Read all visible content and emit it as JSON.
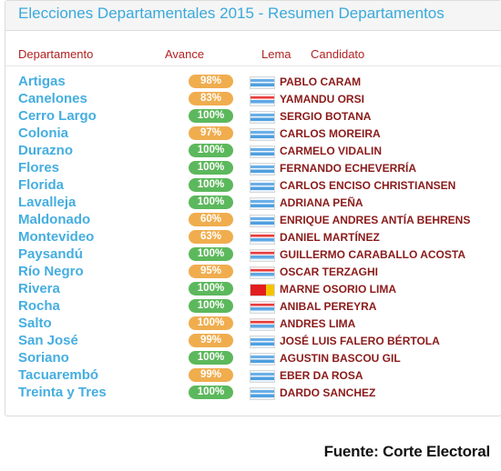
{
  "title": "Elecciones Departamentales 2015 - Resumen Departamentos",
  "columns": {
    "departamento": "Departamento",
    "avance": "Avance",
    "lema": "Lema",
    "candidato": "Candidato"
  },
  "rows": [
    {
      "departamento": "Artigas",
      "avance": "98%",
      "candidato": "PABLO CARAM",
      "flag": "blue",
      "status": "orange"
    },
    {
      "departamento": "Canelones",
      "avance": "83%",
      "candidato": "YAMANDU ORSI",
      "flag": "red",
      "status": "orange"
    },
    {
      "departamento": "Cerro Largo",
      "avance": "100%",
      "candidato": "SERGIO BOTANA",
      "flag": "blue",
      "status": "green"
    },
    {
      "departamento": "Colonia",
      "avance": "97%",
      "candidato": "CARLOS MOREIRA",
      "flag": "blue",
      "status": "orange"
    },
    {
      "departamento": "Durazno",
      "avance": "100%",
      "candidato": "CARMELO VIDALIN",
      "flag": "blue",
      "status": "green"
    },
    {
      "departamento": "Flores",
      "avance": "100%",
      "candidato": "FERNANDO ECHEVERRÍA",
      "flag": "blue",
      "status": "green"
    },
    {
      "departamento": "Florida",
      "avance": "100%",
      "candidato": "CARLOS ENCISO CHRISTIANSEN",
      "flag": "blue",
      "status": "green"
    },
    {
      "departamento": "Lavalleja",
      "avance": "100%",
      "candidato": "ADRIANA PEÑA",
      "flag": "blue",
      "status": "green"
    },
    {
      "departamento": "Maldonado",
      "avance": "60%",
      "candidato": "ENRIQUE ANDRES ANTÍA BEHRENS",
      "flag": "blue",
      "status": "orange"
    },
    {
      "departamento": "Montevideo",
      "avance": "63%",
      "candidato": "DANIEL MARTÍNEZ",
      "flag": "red",
      "status": "orange"
    },
    {
      "departamento": "Paysandú",
      "avance": "100%",
      "candidato": "GUILLERMO CARABALLO ACOSTA",
      "flag": "red",
      "status": "green"
    },
    {
      "departamento": "Río Negro",
      "avance": "95%",
      "candidato": "OSCAR TERZAGHI",
      "flag": "red",
      "status": "orange"
    },
    {
      "departamento": "Rivera",
      "avance": "100%",
      "candidato": "MARNE OSORIO LIMA",
      "flag": "redyellow",
      "status": "green"
    },
    {
      "departamento": "Rocha",
      "avance": "100%",
      "candidato": "ANIBAL PEREYRA",
      "flag": "red",
      "status": "green"
    },
    {
      "departamento": "Salto",
      "avance": "100%",
      "candidato": "ANDRES LIMA",
      "flag": "red",
      "status": "orange"
    },
    {
      "departamento": "San José",
      "avance": "99%",
      "candidato": "JOSÉ LUIS FALERO BÉRTOLA",
      "flag": "blue",
      "status": "orange"
    },
    {
      "departamento": "Soriano",
      "avance": "100%",
      "candidato": "AGUSTIN BASCOU GIL",
      "flag": "blue",
      "status": "green"
    },
    {
      "departamento": "Tacuarembó",
      "avance": "99%",
      "candidato": "EBER DA ROSA",
      "flag": "blue",
      "status": "orange"
    },
    {
      "departamento": "Treinta y Tres",
      "avance": "100%",
      "candidato": "DARDO SANCHEZ",
      "flag": "blue",
      "status": "green"
    }
  ],
  "source": "Fuente: Corte Electoral"
}
